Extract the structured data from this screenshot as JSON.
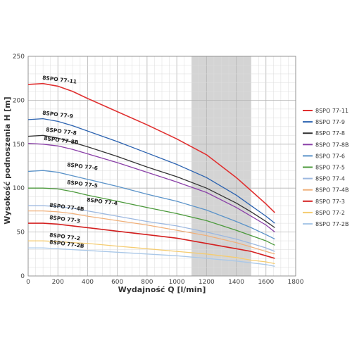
{
  "chart_data": {
    "type": "line",
    "xlabel": "Wydajność Q [l/min]",
    "ylabel": "Wysokość podnoszenia H [m]",
    "xlim": [
      0,
      1800
    ],
    "ylim": [
      0,
      250
    ],
    "xticks": [
      0,
      200,
      400,
      600,
      800,
      1000,
      1200,
      1400,
      1600,
      1800
    ],
    "yticks": [
      0,
      50,
      100,
      150,
      200,
      250
    ],
    "grid": true,
    "legend_position": "right",
    "highlight_band": [
      1100,
      1500
    ],
    "series": [
      {
        "name": "8SPO 77-11",
        "color": "#e03030",
        "label": "8SPO 77-11",
        "x": [
          0,
          100,
          200,
          300,
          400,
          600,
          800,
          1000,
          1200,
          1400,
          1500,
          1600,
          1660
        ],
        "y": [
          218,
          219,
          216,
          210,
          202,
          187,
          172,
          156,
          138,
          112,
          97,
          82,
          72
        ]
      },
      {
        "name": "8SPO 77-9",
        "color": "#2b62b0",
        "label": "8SPO 77-9",
        "x": [
          0,
          100,
          200,
          300,
          400,
          600,
          800,
          1000,
          1200,
          1400,
          1500,
          1600,
          1660
        ],
        "y": [
          178,
          179,
          176,
          171,
          165,
          153,
          140,
          127,
          112,
          92,
          80,
          68,
          60
        ]
      },
      {
        "name": "8SPO 77-8",
        "color": "#333333",
        "label": "8SPO 77-8",
        "x": [
          0,
          100,
          200,
          300,
          400,
          600,
          800,
          1000,
          1200,
          1400,
          1500,
          1600,
          1660
        ],
        "y": [
          159,
          160,
          157,
          152,
          147,
          136,
          124,
          113,
          100,
          83,
          73,
          62,
          55
        ]
      },
      {
        "name": "8SPO 77-8B",
        "color": "#8a3fa8",
        "label": "8SPO 77-8B",
        "x": [
          0,
          100,
          200,
          300,
          400,
          600,
          800,
          1000,
          1200,
          1400,
          1500,
          1600,
          1660
        ],
        "y": [
          151,
          150,
          148,
          144,
          139,
          129,
          118,
          107,
          95,
          78,
          68,
          58,
          50
        ]
      },
      {
        "name": "8SPO 77-6",
        "color": "#5b93c9",
        "label": "8SPO 77-6",
        "x": [
          0,
          100,
          200,
          300,
          400,
          600,
          800,
          1000,
          1200,
          1400,
          1500,
          1600,
          1660
        ],
        "y": [
          119,
          120,
          118,
          114,
          110,
          102,
          93,
          85,
          75,
          62,
          55,
          47,
          42
        ]
      },
      {
        "name": "8SPO 77-5",
        "color": "#4c9a3c",
        "label": "8SPO 77-5",
        "x": [
          0,
          100,
          200,
          300,
          400,
          600,
          800,
          1000,
          1200,
          1400,
          1500,
          1600,
          1660
        ],
        "y": [
          100,
          100,
          99,
          96,
          92,
          85,
          78,
          71,
          63,
          52,
          46,
          40,
          35
        ]
      },
      {
        "name": "8SPO 77-4",
        "color": "#9cb8e0",
        "label": "8SPO 77-4",
        "x": [
          0,
          100,
          200,
          300,
          400,
          600,
          800,
          1000,
          1200,
          1400,
          1500,
          1600,
          1660
        ],
        "y": [
          80,
          80,
          79,
          77,
          74,
          68,
          62,
          57,
          50,
          42,
          37,
          32,
          28
        ]
      },
      {
        "name": "8SPO 77-4B",
        "color": "#f0b07a",
        "label": "8SPO 77-4B",
        "x": [
          0,
          100,
          200,
          300,
          400,
          600,
          800,
          1000,
          1200,
          1400,
          1500,
          1600,
          1660
        ],
        "y": [
          74,
          74,
          73,
          71,
          68,
          63,
          58,
          52,
          46,
          38,
          33,
          28,
          25
        ]
      },
      {
        "name": "8SPO 77-3",
        "color": "#d42020",
        "label": "8SPO 77-3",
        "x": [
          0,
          100,
          200,
          300,
          400,
          600,
          800,
          1000,
          1200,
          1400,
          1500,
          1600,
          1660
        ],
        "y": [
          60,
          60,
          59,
          57,
          55,
          51,
          47,
          43,
          37,
          31,
          28,
          23,
          20
        ]
      },
      {
        "name": "8SPO 77-2",
        "color": "#f5cc70",
        "label": "8SPO 77-2",
        "x": [
          0,
          100,
          200,
          300,
          400,
          600,
          800,
          1000,
          1200,
          1400,
          1500,
          1600,
          1660
        ],
        "y": [
          40,
          40,
          39,
          38,
          37,
          34,
          31,
          28,
          25,
          21,
          18,
          16,
          14
        ]
      },
      {
        "name": "8SPO 77-2B",
        "color": "#aac8e8",
        "label": "8SPO 77-2B",
        "x": [
          0,
          100,
          200,
          300,
          400,
          600,
          800,
          1000,
          1200,
          1400,
          1500,
          1600,
          1660
        ],
        "y": [
          32,
          32,
          31,
          30,
          29,
          27,
          25,
          23,
          20,
          17,
          15,
          13,
          11
        ]
      }
    ]
  }
}
